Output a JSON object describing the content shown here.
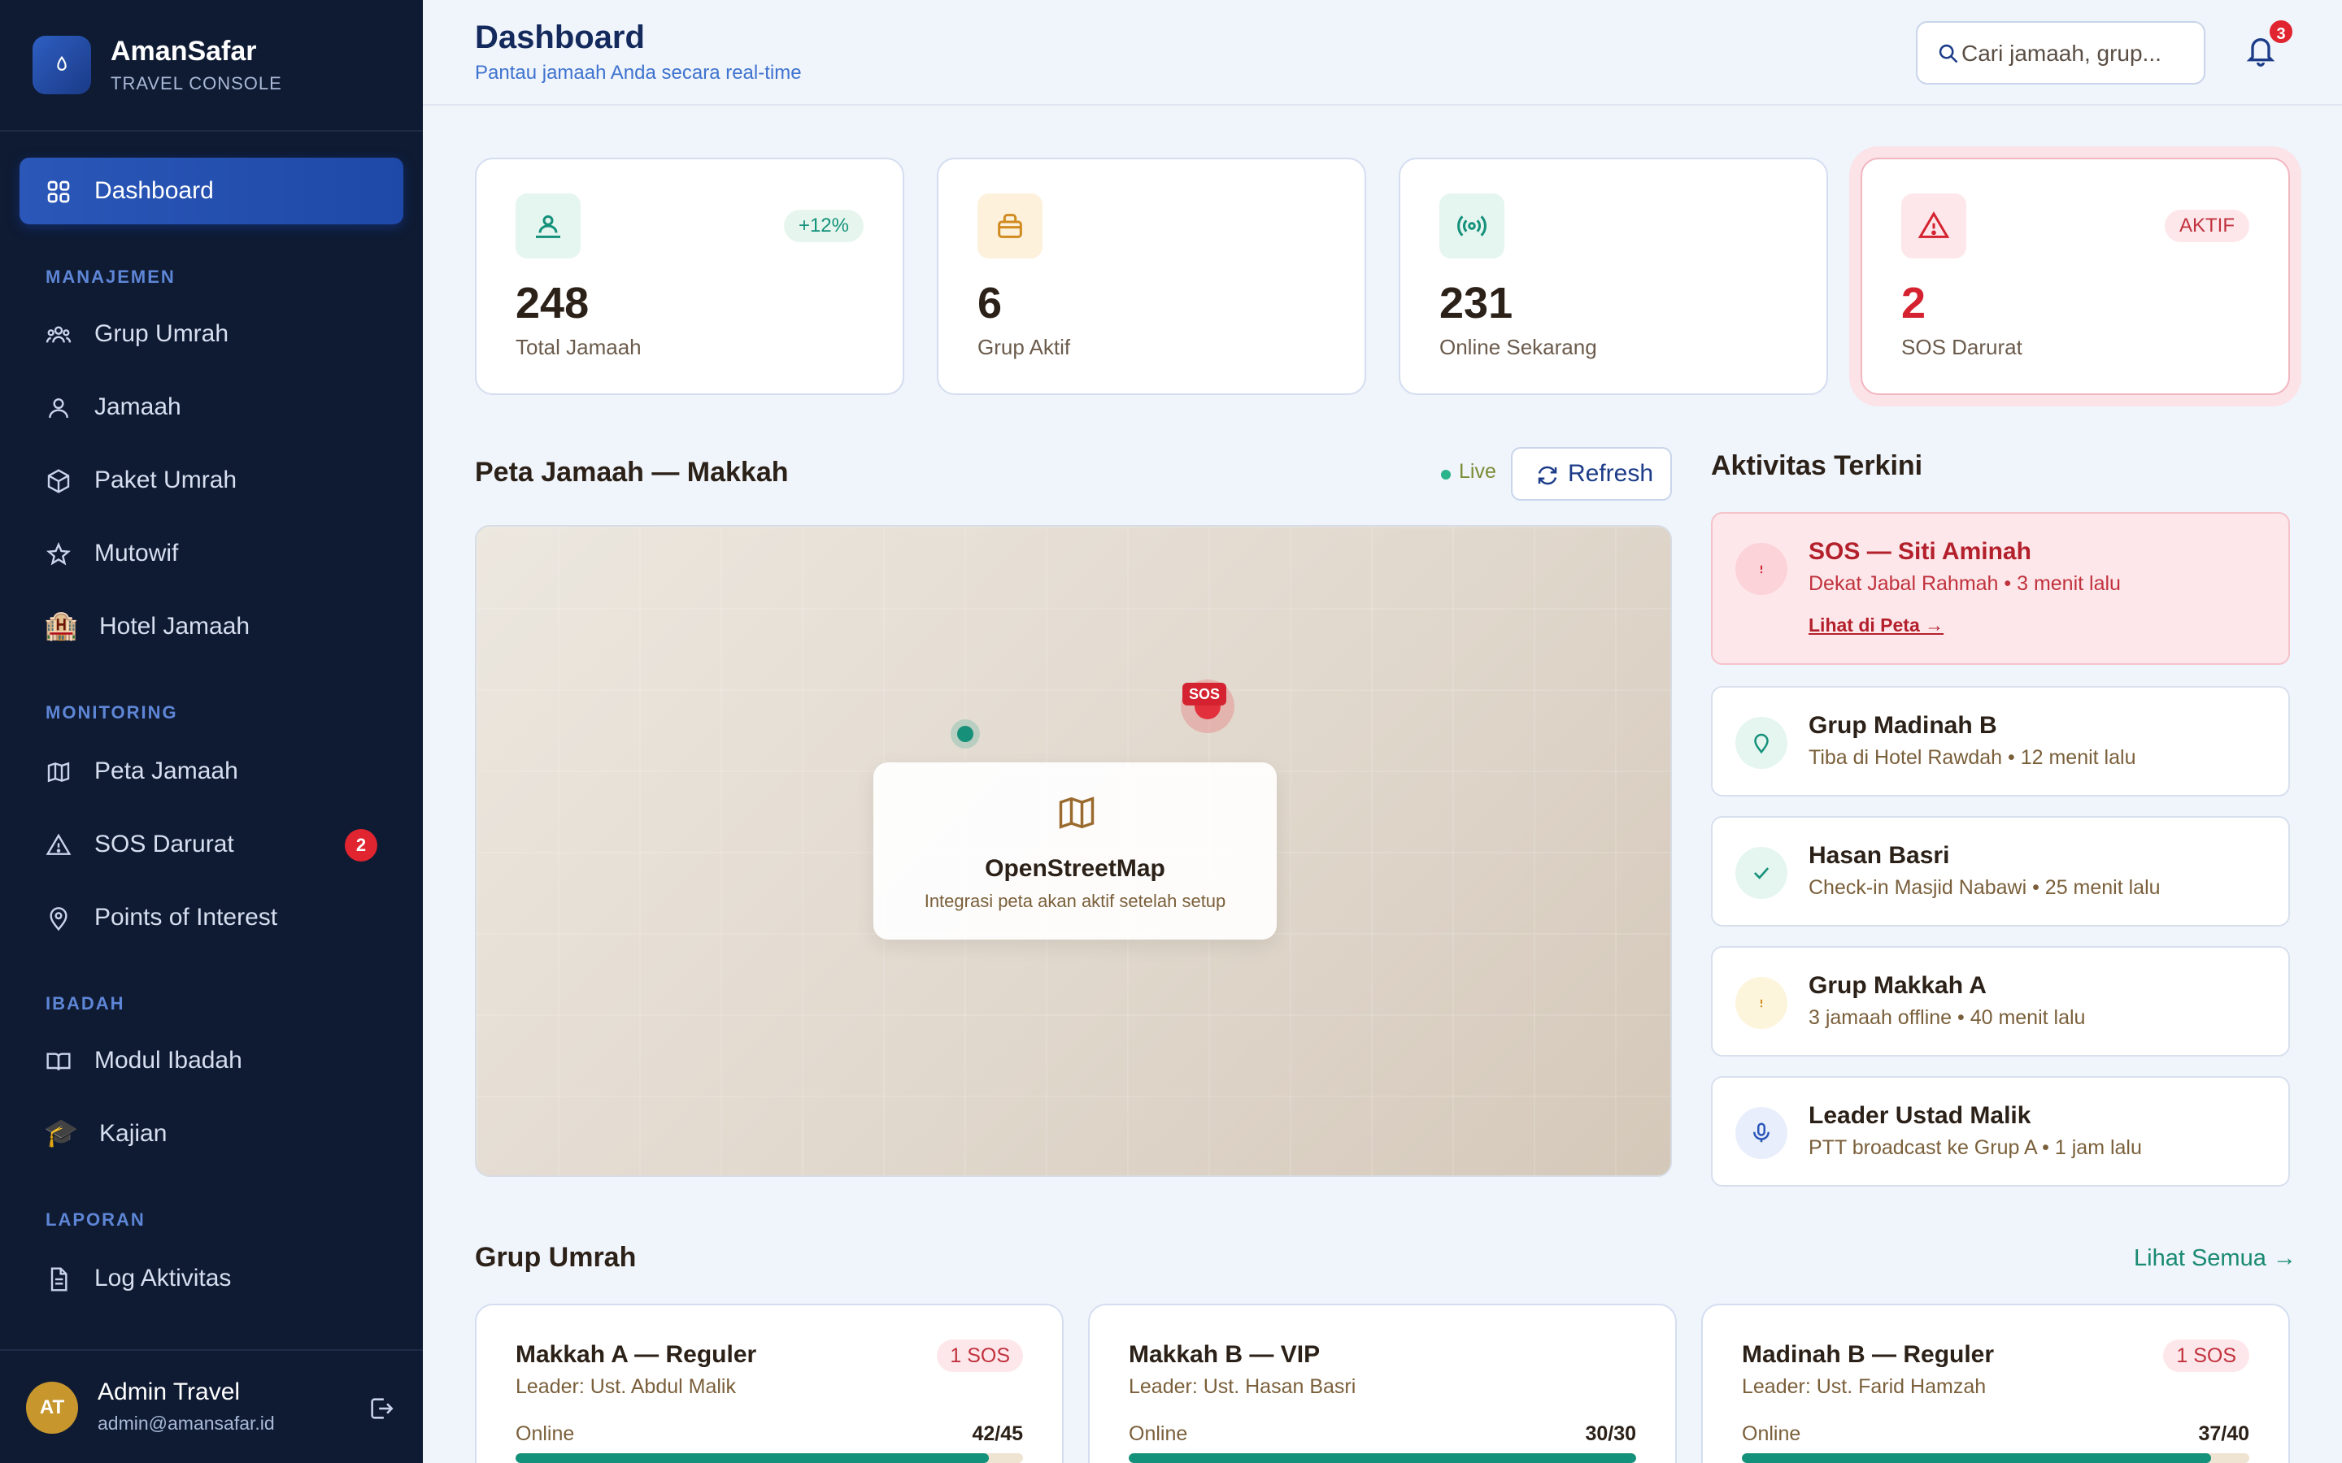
{
  "brand": {
    "title": "AmanSafar",
    "subtitle": "TRAVEL CONSOLE"
  },
  "sidebar": {
    "dashboard": "Dashboard",
    "sections": {
      "manajemen": "MANAJEMEN",
      "monitoring": "MONITORING",
      "ibadah": "IBADAH",
      "laporan": "LAPORAN"
    },
    "items": {
      "grup_umrah": "Grup Umrah",
      "jamaah": "Jamaah",
      "paket_umrah": "Paket Umrah",
      "mutowif": "Mutowif",
      "hotel_jamaah": "Hotel Jamaah",
      "peta_jamaah": "Peta Jamaah",
      "sos_darurat": "SOS Darurat",
      "sos_badge": "2",
      "points_of_interest": "Points of Interest",
      "modul_ibadah": "Modul Ibadah",
      "kajian": "Kajian",
      "log_aktivitas": "Log Aktivitas"
    },
    "emoji": {
      "hotel": "🏨",
      "kajian": "🎓"
    },
    "user": {
      "initials": "AT",
      "name": "Admin Travel",
      "email": "admin@amansafar.id"
    }
  },
  "header": {
    "title": "Dashboard",
    "subtitle": "Pantau jamaah Anda secara real-time",
    "search_placeholder": "Cari jamaah, grup...",
    "notif_count": "3"
  },
  "stats": {
    "total": {
      "value": "248",
      "label": "Total Jamaah",
      "chip": "+12%"
    },
    "grup": {
      "value": "6",
      "label": "Grup Aktif"
    },
    "online": {
      "value": "231",
      "label": "Online Sekarang"
    },
    "sos": {
      "value": "2",
      "label": "SOS Darurat",
      "chip": "AKTIF"
    }
  },
  "map": {
    "title": "Peta Jamaah — Makkah",
    "live": "Live",
    "refresh": "Refresh",
    "sos_marker": "SOS",
    "card_title": "OpenStreetMap",
    "card_sub": "Integrasi peta akan aktif setelah setup"
  },
  "activity": {
    "title": "Aktivitas Terkini",
    "items": [
      {
        "title": "SOS — Siti Aminah",
        "sub": "Dekat Jabal Rahmah • 3 menit lalu",
        "link": "Lihat di Peta →"
      },
      {
        "title": "Grup Madinah B",
        "sub": "Tiba di Hotel Rawdah • 12 menit lalu"
      },
      {
        "title": "Hasan Basri",
        "sub": "Check-in Masjid Nabawi • 25 menit lalu"
      },
      {
        "title": "Grup Makkah A",
        "sub": "3 jamaah offline • 40 menit lalu"
      },
      {
        "title": "Leader Ustad Malik",
        "sub": "PTT broadcast ke Grup A • 1 jam lalu"
      }
    ]
  },
  "groups": {
    "title": "Grup Umrah",
    "see_all": "Lihat Semua →",
    "online_label": "Online",
    "items": [
      {
        "name": "Makkah A — Reguler",
        "leader": "Leader: Ust. Abdul Malik",
        "sos": "1 SOS",
        "count": "42/45",
        "progress": 0.933
      },
      {
        "name": "Makkah B — VIP",
        "leader": "Leader: Ust. Hasan Basri",
        "count": "30/30",
        "progress": 1.0
      },
      {
        "name": "Madinah B — Reguler",
        "leader": "Leader: Ust. Farid Hamzah",
        "sos": "1 SOS",
        "count": "37/40",
        "progress": 0.925
      }
    ]
  },
  "colors": {
    "sidebar_bg": "#0f1b33",
    "accent_blue": "#2a57b8",
    "sos_red": "#e02430",
    "online_teal": "#14917a"
  }
}
